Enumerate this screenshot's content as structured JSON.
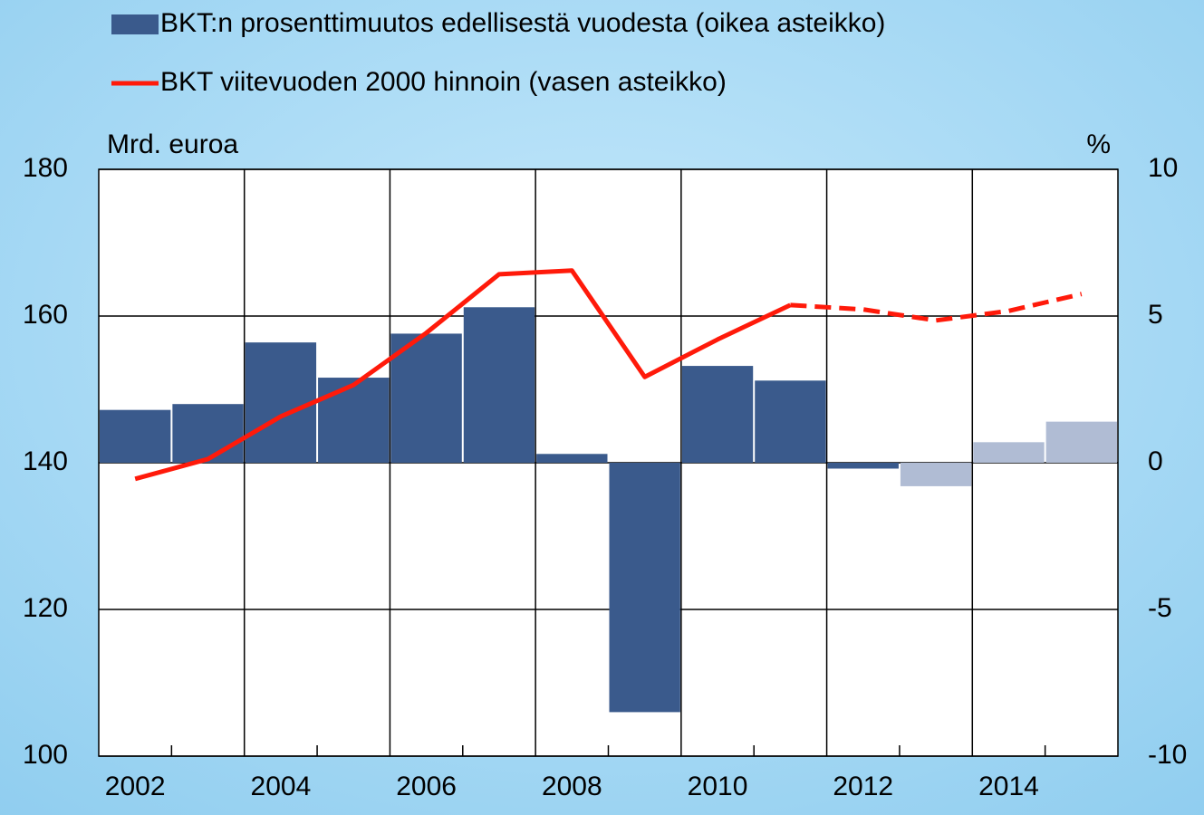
{
  "chart_data": {
    "type": "bar_line",
    "y_label": "Mrd. euroa",
    "y2_label": "%",
    "categories": [
      "2002",
      null,
      "2004",
      null,
      "2006",
      null,
      "2008",
      null,
      "2010",
      null,
      "2012",
      null,
      "2014",
      null
    ],
    "series": [
      {
        "name": "BKT:n prosenttimuutos edellisestä vuodesta (oikea asteikko)",
        "type": "bar",
        "axis": "y2",
        "color": "#3a5a8c",
        "colors": [
          "#3a5a8c",
          "#3a5a8c",
          "#3a5a8c",
          "#3a5a8c",
          "#3a5a8c",
          "#3a5a8c",
          "#3a5a8c",
          "#3a5a8c",
          "#3a5a8c",
          "#3a5a8c",
          "#3a5a8c",
          "#b0bcd4",
          "#b0bcd4",
          "#b0bcd4"
        ],
        "values": [
          1.8,
          2.0,
          4.1,
          2.9,
          4.4,
          5.3,
          0.3,
          -8.5,
          3.3,
          2.8,
          -0.2,
          -0.8,
          0.7,
          1.4
        ]
      },
      {
        "name": "BKT viitevuoden 2000 hinnoin (vasen asteikko)",
        "type": "line",
        "axis": "y",
        "color": "#ff1a0a",
        "dashed": [
          false,
          false,
          false,
          false,
          false,
          false,
          false,
          false,
          false,
          false,
          true,
          true,
          true,
          true
        ],
        "values": [
          137.8,
          140.5,
          146.3,
          150.6,
          157.7,
          165.7,
          166.2,
          151.7,
          156.8,
          161.5,
          160.9,
          159.4,
          160.7,
          163.0
        ]
      }
    ],
    "ylim": [
      100,
      180
    ],
    "yticks": [
      100,
      120,
      140,
      160,
      180
    ],
    "y2lim": [
      -10,
      10
    ],
    "y2ticks": [
      -10,
      -5,
      0,
      5,
      10
    ],
    "grid": true
  }
}
